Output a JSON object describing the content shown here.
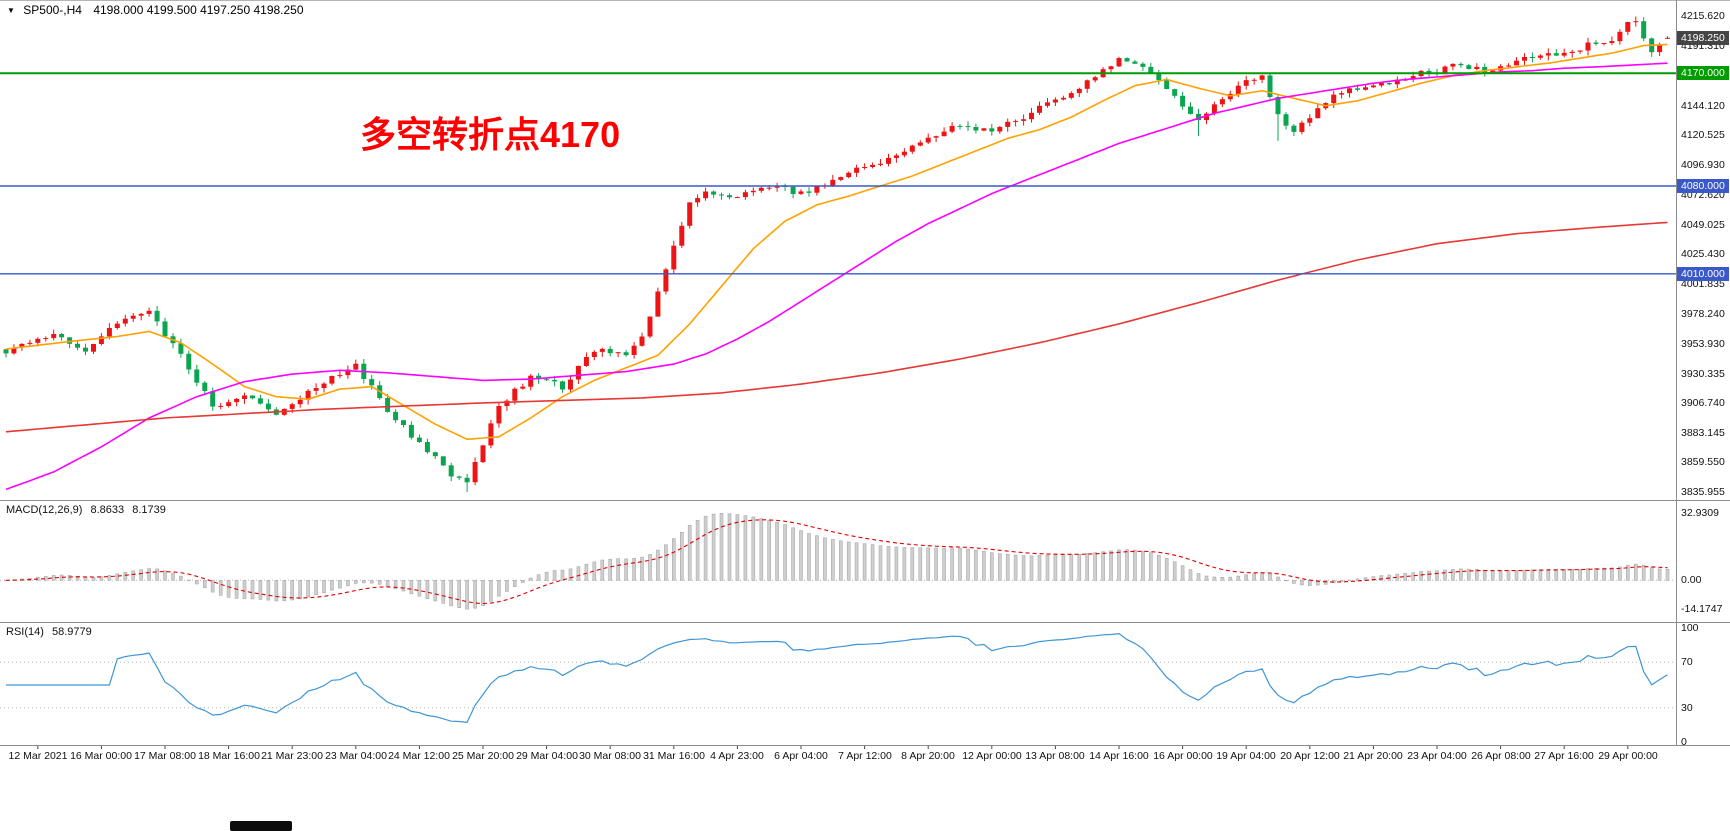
{
  "header": {
    "dropdown_icon": "▼",
    "symbol": "SP500-,H4",
    "ohlc": "4198.000 4199.500 4197.250 4198.250"
  },
  "annotation": {
    "text": "多空转折点4170",
    "color": "#ff0000"
  },
  "price_axis": {
    "ticks": [
      "4215.620",
      "4191.310",
      "4144.120",
      "4120.525",
      "4096.930",
      "4072.620",
      "4049.025",
      "4025.430",
      "4001.835",
      "3978.240",
      "3953.930",
      "3930.335",
      "3906.740",
      "3883.145",
      "3859.550",
      "3835.955"
    ],
    "tags": [
      {
        "name": "current-price",
        "value": "4198.250",
        "price": 4198.25,
        "bg": "#454545"
      },
      {
        "name": "level-4170",
        "value": "4170.000",
        "price": 4170.0,
        "bg": "#009c00"
      },
      {
        "name": "level-4080",
        "value": "4080.000",
        "price": 4080.0,
        "bg": "#3a58c8"
      },
      {
        "name": "level-4010",
        "value": "4010.000",
        "price": 4010.0,
        "bg": "#3a58c8"
      }
    ]
  },
  "macd": {
    "label": "MACD(12,26,9)",
    "values": [
      "8.8633",
      "8.1739"
    ],
    "axis": [
      "32.9309",
      "0.00",
      "-14.1747"
    ],
    "axis_values": [
      32.9309,
      0,
      -14.1747
    ]
  },
  "rsi": {
    "label": "RSI(14)",
    "value": "58.9779",
    "axis": [
      "100",
      "70",
      "30",
      "0"
    ],
    "axis_values": [
      100,
      70,
      30,
      0
    ]
  },
  "time_axis": {
    "labels": [
      "12 Mar 2021",
      "16 Mar 00:00",
      "17 Mar 08:00",
      "18 Mar 16:00",
      "21 Mar 23:00",
      "23 Mar 04:00",
      "24 Mar 12:00",
      "25 Mar 20:00",
      "29 Mar 04:00",
      "30 Mar 08:00",
      "31 Mar 16:00",
      "4 Apr 23:00",
      "6 Apr 04:00",
      "7 Apr 12:00",
      "8 Apr 20:00",
      "12 Apr 00:00",
      "13 Apr 08:00",
      "14 Apr 16:00",
      "16 Apr 00:00",
      "19 Apr 04:00",
      "20 Apr 12:00",
      "21 Apr 20:00",
      "23 Apr 04:00",
      "26 Apr 08:00",
      "27 Apr 16:00",
      "29 Apr 00:00"
    ]
  },
  "chart_data": {
    "type": "candlestick",
    "symbol": "SP500-",
    "timeframe": "H4",
    "candle_count": 210,
    "ylim": [
      3835.955,
      4215.62
    ],
    "up_color": "#ec1414",
    "down_color": "#0ba551",
    "price_keypoints": [
      [
        0,
        3948
      ],
      [
        6,
        3960
      ],
      [
        10,
        3950
      ],
      [
        14,
        3972
      ],
      [
        18,
        3980
      ],
      [
        22,
        3945
      ],
      [
        26,
        3905
      ],
      [
        30,
        3912
      ],
      [
        34,
        3900
      ],
      [
        38,
        3915
      ],
      [
        42,
        3930
      ],
      [
        44,
        3938
      ],
      [
        48,
        3900
      ],
      [
        52,
        3875
      ],
      [
        56,
        3850
      ],
      [
        58,
        3845
      ],
      [
        62,
        3905
      ],
      [
        66,
        3928
      ],
      [
        70,
        3920
      ],
      [
        74,
        3950
      ],
      [
        78,
        3945
      ],
      [
        80,
        3958
      ],
      [
        82,
        3995
      ],
      [
        84,
        4030
      ],
      [
        86,
        4068
      ],
      [
        88,
        4075
      ],
      [
        92,
        4072
      ],
      [
        96,
        4080
      ],
      [
        100,
        4074
      ],
      [
        104,
        4085
      ],
      [
        108,
        4095
      ],
      [
        112,
        4105
      ],
      [
        116,
        4118
      ],
      [
        120,
        4128
      ],
      [
        124,
        4125
      ],
      [
        128,
        4135
      ],
      [
        132,
        4148
      ],
      [
        136,
        4162
      ],
      [
        140,
        4180
      ],
      [
        144,
        4172
      ],
      [
        148,
        4145
      ],
      [
        150,
        4132
      ],
      [
        154,
        4155
      ],
      [
        158,
        4170
      ],
      [
        160,
        4135
      ],
      [
        162,
        4125
      ],
      [
        166,
        4148
      ],
      [
        170,
        4158
      ],
      [
        174,
        4162
      ],
      [
        178,
        4170
      ],
      [
        182,
        4175
      ],
      [
        186,
        4172
      ],
      [
        190,
        4180
      ],
      [
        194,
        4184
      ],
      [
        198,
        4190
      ],
      [
        202,
        4198
      ],
      [
        204,
        4210
      ],
      [
        205,
        4212
      ],
      [
        207,
        4188
      ],
      [
        209,
        4198.25
      ]
    ],
    "overrides": {
      "58": {
        "l": 3835.955
      },
      "150": {
        "l": 4120
      },
      "160": {
        "l": 4116
      },
      "205": {
        "h": 4215.2
      },
      "207": {
        "l": 4183
      },
      "209": {
        "o": 4198.0,
        "h": 4199.5,
        "l": 4197.25,
        "c": 4198.25
      }
    },
    "moving_averages": [
      {
        "name": "ma-fast",
        "color": "#ffa200",
        "keypoints": [
          [
            0,
            3950
          ],
          [
            8,
            3956
          ],
          [
            14,
            3960
          ],
          [
            18,
            3964
          ],
          [
            22,
            3955
          ],
          [
            26,
            3938
          ],
          [
            30,
            3920
          ],
          [
            34,
            3912
          ],
          [
            38,
            3910
          ],
          [
            42,
            3918
          ],
          [
            46,
            3920
          ],
          [
            50,
            3905
          ],
          [
            54,
            3890
          ],
          [
            58,
            3878
          ],
          [
            62,
            3880
          ],
          [
            66,
            3895
          ],
          [
            70,
            3912
          ],
          [
            74,
            3925
          ],
          [
            78,
            3935
          ],
          [
            82,
            3945
          ],
          [
            86,
            3970
          ],
          [
            90,
            4000
          ],
          [
            94,
            4030
          ],
          [
            98,
            4052
          ],
          [
            102,
            4065
          ],
          [
            106,
            4072
          ],
          [
            110,
            4080
          ],
          [
            114,
            4088
          ],
          [
            118,
            4098
          ],
          [
            122,
            4108
          ],
          [
            126,
            4118
          ],
          [
            130,
            4125
          ],
          [
            134,
            4135
          ],
          [
            138,
            4148
          ],
          [
            142,
            4160
          ],
          [
            146,
            4165
          ],
          [
            150,
            4158
          ],
          [
            154,
            4152
          ],
          [
            158,
            4156
          ],
          [
            162,
            4150
          ],
          [
            166,
            4144
          ],
          [
            170,
            4148
          ],
          [
            174,
            4155
          ],
          [
            178,
            4162
          ],
          [
            182,
            4168
          ],
          [
            186,
            4172
          ],
          [
            190,
            4175
          ],
          [
            194,
            4178
          ],
          [
            198,
            4182
          ],
          [
            202,
            4186
          ],
          [
            206,
            4192
          ],
          [
            209,
            4193
          ]
        ]
      },
      {
        "name": "ma-medium",
        "color": "#ff00ff",
        "keypoints": [
          [
            0,
            3838
          ],
          [
            6,
            3852
          ],
          [
            12,
            3872
          ],
          [
            18,
            3895
          ],
          [
            24,
            3912
          ],
          [
            30,
            3924
          ],
          [
            36,
            3930
          ],
          [
            42,
            3933
          ],
          [
            48,
            3931
          ],
          [
            54,
            3928
          ],
          [
            60,
            3925
          ],
          [
            66,
            3926
          ],
          [
            72,
            3929
          ],
          [
            78,
            3932
          ],
          [
            84,
            3938
          ],
          [
            88,
            3946
          ],
          [
            92,
            3958
          ],
          [
            96,
            3972
          ],
          [
            100,
            3988
          ],
          [
            104,
            4004
          ],
          [
            108,
            4020
          ],
          [
            112,
            4036
          ],
          [
            116,
            4050
          ],
          [
            120,
            4062
          ],
          [
            124,
            4074
          ],
          [
            128,
            4084
          ],
          [
            132,
            4094
          ],
          [
            136,
            4104
          ],
          [
            140,
            4114
          ],
          [
            144,
            4122
          ],
          [
            148,
            4130
          ],
          [
            152,
            4138
          ],
          [
            156,
            4144
          ],
          [
            160,
            4150
          ],
          [
            164,
            4154
          ],
          [
            168,
            4158
          ],
          [
            172,
            4162
          ],
          [
            176,
            4165
          ],
          [
            180,
            4167
          ],
          [
            184,
            4169
          ],
          [
            188,
            4171
          ],
          [
            192,
            4172
          ],
          [
            196,
            4174
          ],
          [
            200,
            4175
          ],
          [
            209,
            4178
          ]
        ]
      },
      {
        "name": "ma-slow",
        "color": "#e53935",
        "keypoints": [
          [
            0,
            3884
          ],
          [
            20,
            3895
          ],
          [
            40,
            3902
          ],
          [
            60,
            3907
          ],
          [
            80,
            3911
          ],
          [
            90,
            3915
          ],
          [
            100,
            3922
          ],
          [
            110,
            3931
          ],
          [
            120,
            3942
          ],
          [
            130,
            3955
          ],
          [
            140,
            3970
          ],
          [
            150,
            3987
          ],
          [
            160,
            4005
          ],
          [
            170,
            4021
          ],
          [
            180,
            4034
          ],
          [
            190,
            4042
          ],
          [
            200,
            4047
          ],
          [
            209,
            4051
          ]
        ]
      }
    ],
    "levels": [
      {
        "price": 4170.0,
        "color": "#009c00",
        "width": 2
      },
      {
        "price": 4080.0,
        "color": "#3a58c8",
        "width": 1.4
      },
      {
        "price": 4010.0,
        "color": "#3a58c8",
        "width": 1.4
      }
    ],
    "macd_scale": {
      "max": 32.9309,
      "min": -14.1747
    },
    "macd_histogram_color": "#cfcfcf",
    "macd_signal_color": "#e00000",
    "rsi_color": "#3e95d6",
    "rsi_levels": [
      70,
      30
    ]
  }
}
